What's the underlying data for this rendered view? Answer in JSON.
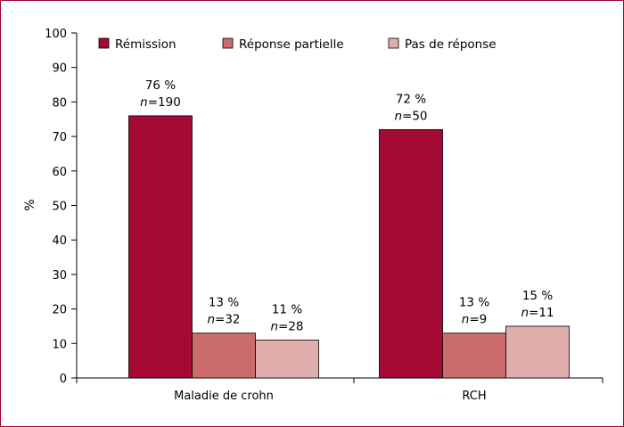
{
  "chart_data": {
    "type": "bar",
    "categories": [
      "Maladie de crohn",
      "RCH"
    ],
    "series": [
      {
        "name": "Rémission",
        "color": "#a50a35",
        "values": [
          76,
          72
        ],
        "percent_labels": [
          "76 %",
          "72 %"
        ],
        "n": [
          "190",
          "50"
        ]
      },
      {
        "name": "Réponse partielle",
        "color": "#cc6b6b",
        "values": [
          13,
          13
        ],
        "percent_labels": [
          "13 %",
          "13 %"
        ],
        "n": [
          "32",
          "9"
        ]
      },
      {
        "name": "Pas de réponse",
        "color": "#e1afab",
        "values": [
          11,
          15
        ],
        "percent_labels": [
          "11 %",
          "15 %"
        ],
        "n": [
          "28",
          "11"
        ]
      }
    ],
    "n_prefix": "n",
    "n_separator": "=",
    "ylabel": "%",
    "ylim": [
      0,
      100
    ],
    "yticks": [
      0,
      10,
      20,
      30,
      40,
      50,
      60,
      70,
      80,
      90,
      100
    ],
    "grid": false,
    "legend": "top",
    "frame_color": "#a3003a"
  }
}
